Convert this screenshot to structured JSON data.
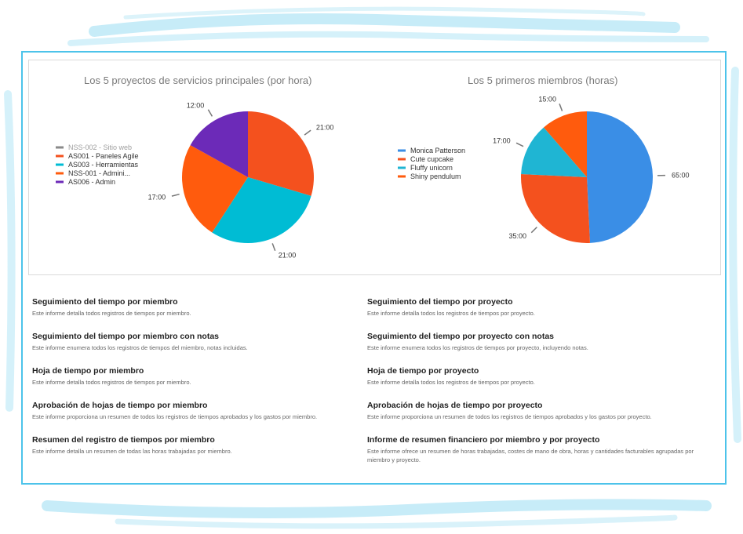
{
  "charts": {
    "projects": {
      "title": "Los 5  proyectos de servicios principales  (por hora)",
      "legend": [
        {
          "label": "NSS-002 - Sitio web",
          "color": "#8a8a8a",
          "muted": true
        },
        {
          "label": "AS001 - Paneles Agile",
          "color": "#f4511e"
        },
        {
          "label": "AS003 - Herramientas",
          "color": "#00bcd4"
        },
        {
          "label": "NSS-001 - Admini...",
          "color": "#ff5b0d"
        },
        {
          "label": "AS006 - Admin",
          "color": "#6c2ab8"
        }
      ]
    },
    "members": {
      "title": "Los 5 primeros miembros (horas)",
      "legend": [
        {
          "label": "Monica Patterson",
          "color": "#3a8ee6"
        },
        {
          "label": "Cute cupcake",
          "color": "#f4511e"
        },
        {
          "label": "Fluffy unicorn",
          "color": "#1fb5d3"
        },
        {
          "label": "Shiny pendulum",
          "color": "#ff5b0d"
        }
      ]
    }
  },
  "chart_data": [
    {
      "type": "pie",
      "title": "Los 5  proyectos de servicios principales  (por hora)",
      "legend_position": "left",
      "slices": [
        {
          "name": "AS001 - Paneles Agile",
          "value": 21,
          "label": "21:00",
          "color": "#f4511e"
        },
        {
          "name": "AS003 - Herramientas",
          "value": 21,
          "label": "21:00",
          "color": "#00bcd4"
        },
        {
          "name": "NSS-001 - Admini...",
          "value": 17,
          "label": "17:00",
          "color": "#ff5b0d"
        },
        {
          "name": "AS006 - Admin",
          "value": 12,
          "label": "12:00",
          "color": "#6c2ab8"
        }
      ]
    },
    {
      "type": "pie",
      "title": "Los 5 primeros miembros (horas)",
      "legend_position": "left",
      "slices": [
        {
          "name": "Monica Patterson",
          "value": 65,
          "label": "65:00",
          "color": "#3a8ee6"
        },
        {
          "name": "Cute cupcake",
          "value": 35,
          "label": "35:00",
          "color": "#f4511e"
        },
        {
          "name": "Fluffy unicorn",
          "value": 17,
          "label": "17:00",
          "color": "#1fb5d3"
        },
        {
          "name": "Shiny pendulum",
          "value": 15,
          "label": "15:00",
          "color": "#ff5b0d"
        }
      ]
    }
  ],
  "reports": [
    {
      "title": "Seguimiento del tiempo por miembro",
      "desc": "Este informe detalla todos registros de tiempos por miembro."
    },
    {
      "title": "Seguimiento del tiempo por proyecto",
      "desc": "Este informe detalla todos los registros de tiempos por proyecto."
    },
    {
      "title": "Seguimiento del tiempo por miembro con notas",
      "desc": "Este informe enumera todos los registros de tiempos del miembro, notas incluidas."
    },
    {
      "title": "Seguimiento del tiempo por proyecto con notas",
      "desc": "Este informe enumera todos los registros de tiempos por proyecto, incluyendo notas."
    },
    {
      "title": "Hoja de tiempo por miembro",
      "desc": "Este informe detalla todos registros de tiempos por miembro."
    },
    {
      "title": "Hoja de tiempo por proyecto",
      "desc": "Este informe detalla todos los registros de tiempos por proyecto."
    },
    {
      "title": "Aprobación de hojas de tiempo por miembro",
      "desc": "Este informe proporciona un resumen de todos los registros de tiempos aprobados y los gastos por miembro."
    },
    {
      "title": "Aprobación de hojas de tiempo por proyecto",
      "desc": "Este informe proporciona un resumen de todos los registros de tiempos aprobados y los gastos por proyecto."
    },
    {
      "title": "Resumen del registro de tiempos por miembro",
      "desc": "Este informe detalla un resumen de todas las horas trabajadas por miembro."
    },
    {
      "title": "Informe de resumen financiero por miembro y por proyecto",
      "desc": "Este informe ofrece un resumen de horas trabajadas, costes de mano de obra, horas y cantidades facturables agrupadas por miembro y proyecto."
    }
  ]
}
